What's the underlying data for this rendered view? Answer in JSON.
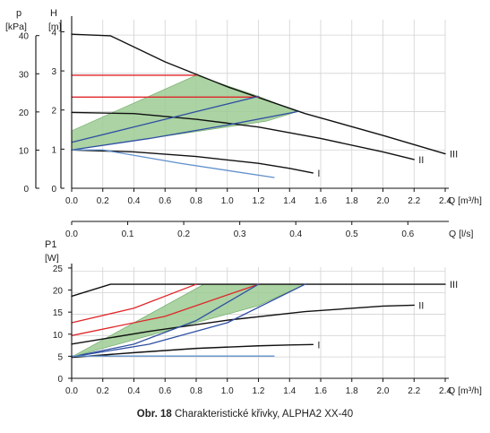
{
  "caption": {
    "figure_label": "Obr. 18",
    "text": "Charakteristické křivky, ALPHA2 XX-40"
  },
  "colors": {
    "black": "#111111",
    "red": "#e0262a",
    "dark_blue": "#2f4fa3",
    "light_blue": "#5f8fcb",
    "green_fill": "#9ccb93",
    "green_edge": "#6aa660",
    "grid": "#d2d2d2"
  },
  "chart_data": [
    {
      "type": "line",
      "title": "",
      "x_axis": {
        "label": "Q [m³/h]",
        "ticks": [
          "0.0",
          "0.2",
          "0.4",
          "0.6",
          "0.8",
          "1.0",
          "1.2",
          "1.4",
          "1.6",
          "1.8",
          "2.0",
          "2.2",
          "2.4"
        ],
        "range": [
          0,
          2.4
        ]
      },
      "y_axis_left": {
        "label_top": "p",
        "label_unit": "[kPa]",
        "ticks": [
          "0",
          "10",
          "20",
          "30",
          "40"
        ]
      },
      "y_axis_right": {
        "label_top": "H",
        "label_unit": "[m]",
        "ticks": [
          "0",
          "1",
          "2",
          "3",
          "4"
        ],
        "range": [
          0,
          4.4
        ]
      },
      "grid": true,
      "secondary_x_axis": {
        "label": "Q [l/s]",
        "ticks": [
          "0.0",
          "0.1",
          "0.2",
          "0.3",
          "0.4",
          "0.5",
          "0.6"
        ],
        "range": [
          0,
          0.667
        ]
      },
      "green_area": [
        [
          0,
          1.0
        ],
        [
          0,
          1.5
        ],
        [
          0.8,
          2.95
        ],
        [
          1.2,
          2.4
        ],
        [
          1.45,
          2.0
        ],
        [
          1.25,
          1.75
        ],
        [
          0,
          1.0
        ]
      ],
      "series": [
        {
          "name": "III",
          "color": "black",
          "points": [
            [
              0,
              4.02
            ],
            [
              0.25,
              3.98
            ],
            [
              0.6,
              3.3
            ],
            [
              1.0,
              2.65
            ],
            [
              1.5,
              1.95
            ],
            [
              2.0,
              1.38
            ],
            [
              2.4,
              0.9
            ]
          ]
        },
        {
          "name": "II",
          "color": "black",
          "points": [
            [
              0,
              1.98
            ],
            [
              0.4,
              1.95
            ],
            [
              0.8,
              1.8
            ],
            [
              1.2,
              1.6
            ],
            [
              1.6,
              1.3
            ],
            [
              2.0,
              0.95
            ],
            [
              2.2,
              0.75
            ]
          ]
        },
        {
          "name": "I",
          "color": "black",
          "points": [
            [
              0,
              1.0
            ],
            [
              0.4,
              0.95
            ],
            [
              0.8,
              0.83
            ],
            [
              1.2,
              0.65
            ],
            [
              1.4,
              0.52
            ],
            [
              1.55,
              0.4
            ]
          ]
        },
        {
          "name": "",
          "color": "red",
          "points": [
            [
              0,
              2.95
            ],
            [
              0.8,
              2.95
            ]
          ]
        },
        {
          "name": "",
          "color": "red",
          "points": [
            [
              0,
              2.38
            ],
            [
              1.2,
              2.38
            ]
          ]
        },
        {
          "name": "",
          "color": "dark_blue",
          "points": [
            [
              0,
              1.2
            ],
            [
              0.4,
              1.6
            ],
            [
              0.8,
              2.0
            ],
            [
              1.2,
              2.4
            ]
          ]
        },
        {
          "name": "",
          "color": "dark_blue",
          "points": [
            [
              0,
              1.0
            ],
            [
              0.5,
              1.3
            ],
            [
              1.0,
              1.65
            ],
            [
              1.45,
              2.0
            ]
          ]
        },
        {
          "name": "",
          "color": "light_blue",
          "points": [
            [
              0,
              1.0
            ],
            [
              0.2,
              1.0
            ],
            [
              0.7,
              0.65
            ],
            [
              1.3,
              0.28
            ]
          ]
        }
      ],
      "annotations": [
        "III",
        "II",
        "I"
      ]
    },
    {
      "type": "line",
      "title": "",
      "x_axis": {
        "label": "Q [m³/h]",
        "ticks": [
          "0.0",
          "0.2",
          "0.4",
          "0.6",
          "0.8",
          "1.0",
          "1.2",
          "1.4",
          "1.6",
          "1.8",
          "2.0",
          "2.2",
          "2.4"
        ],
        "range": [
          0,
          2.4
        ]
      },
      "y_axis": {
        "label_top": "P1",
        "label_unit": "[W]",
        "ticks": [
          "0",
          "5",
          "10",
          "15",
          "20",
          "25"
        ],
        "range": [
          0,
          26
        ]
      },
      "grid": true,
      "green_area": [
        [
          0,
          5
        ],
        [
          0.85,
          22
        ],
        [
          1.5,
          22
        ],
        [
          1.2,
          17
        ],
        [
          0,
          5
        ]
      ],
      "series": [
        {
          "name": "III",
          "color": "black",
          "points": [
            [
              0,
              19.2
            ],
            [
              0.25,
              22
            ],
            [
              2.4,
              22
            ]
          ]
        },
        {
          "name": "II",
          "color": "black",
          "points": [
            [
              0,
              8.0
            ],
            [
              0.5,
              11
            ],
            [
              1.0,
              13.6
            ],
            [
              1.5,
              15.6
            ],
            [
              2.0,
              16.9
            ],
            [
              2.2,
              17.1
            ]
          ]
        },
        {
          "name": "I",
          "color": "black",
          "points": [
            [
              0,
              4.9
            ],
            [
              0.4,
              6.0
            ],
            [
              0.8,
              7.0
            ],
            [
              1.2,
              7.6
            ],
            [
              1.4,
              7.8
            ],
            [
              1.55,
              7.9
            ]
          ]
        },
        {
          "name": "",
          "color": "red",
          "points": [
            [
              0,
              13
            ],
            [
              0.4,
              16.4
            ],
            [
              0.8,
              22
            ]
          ]
        },
        {
          "name": "",
          "color": "red",
          "points": [
            [
              0,
              10
            ],
            [
              0.6,
              14.5
            ],
            [
              1.2,
              22
            ]
          ]
        },
        {
          "name": "",
          "color": "dark_blue",
          "points": [
            [
              0,
              5
            ],
            [
              0.4,
              8
            ],
            [
              0.8,
              13.5
            ],
            [
              1.2,
              22
            ]
          ]
        },
        {
          "name": "",
          "color": "dark_blue",
          "points": [
            [
              0,
              5
            ],
            [
              0.5,
              8
            ],
            [
              1.0,
              13
            ],
            [
              1.5,
              22
            ]
          ]
        },
        {
          "name": "",
          "color": "light_blue",
          "points": [
            [
              0,
              5.2
            ],
            [
              1.3,
              5.2
            ]
          ]
        }
      ],
      "annotations": [
        "III",
        "II",
        "I"
      ]
    }
  ]
}
